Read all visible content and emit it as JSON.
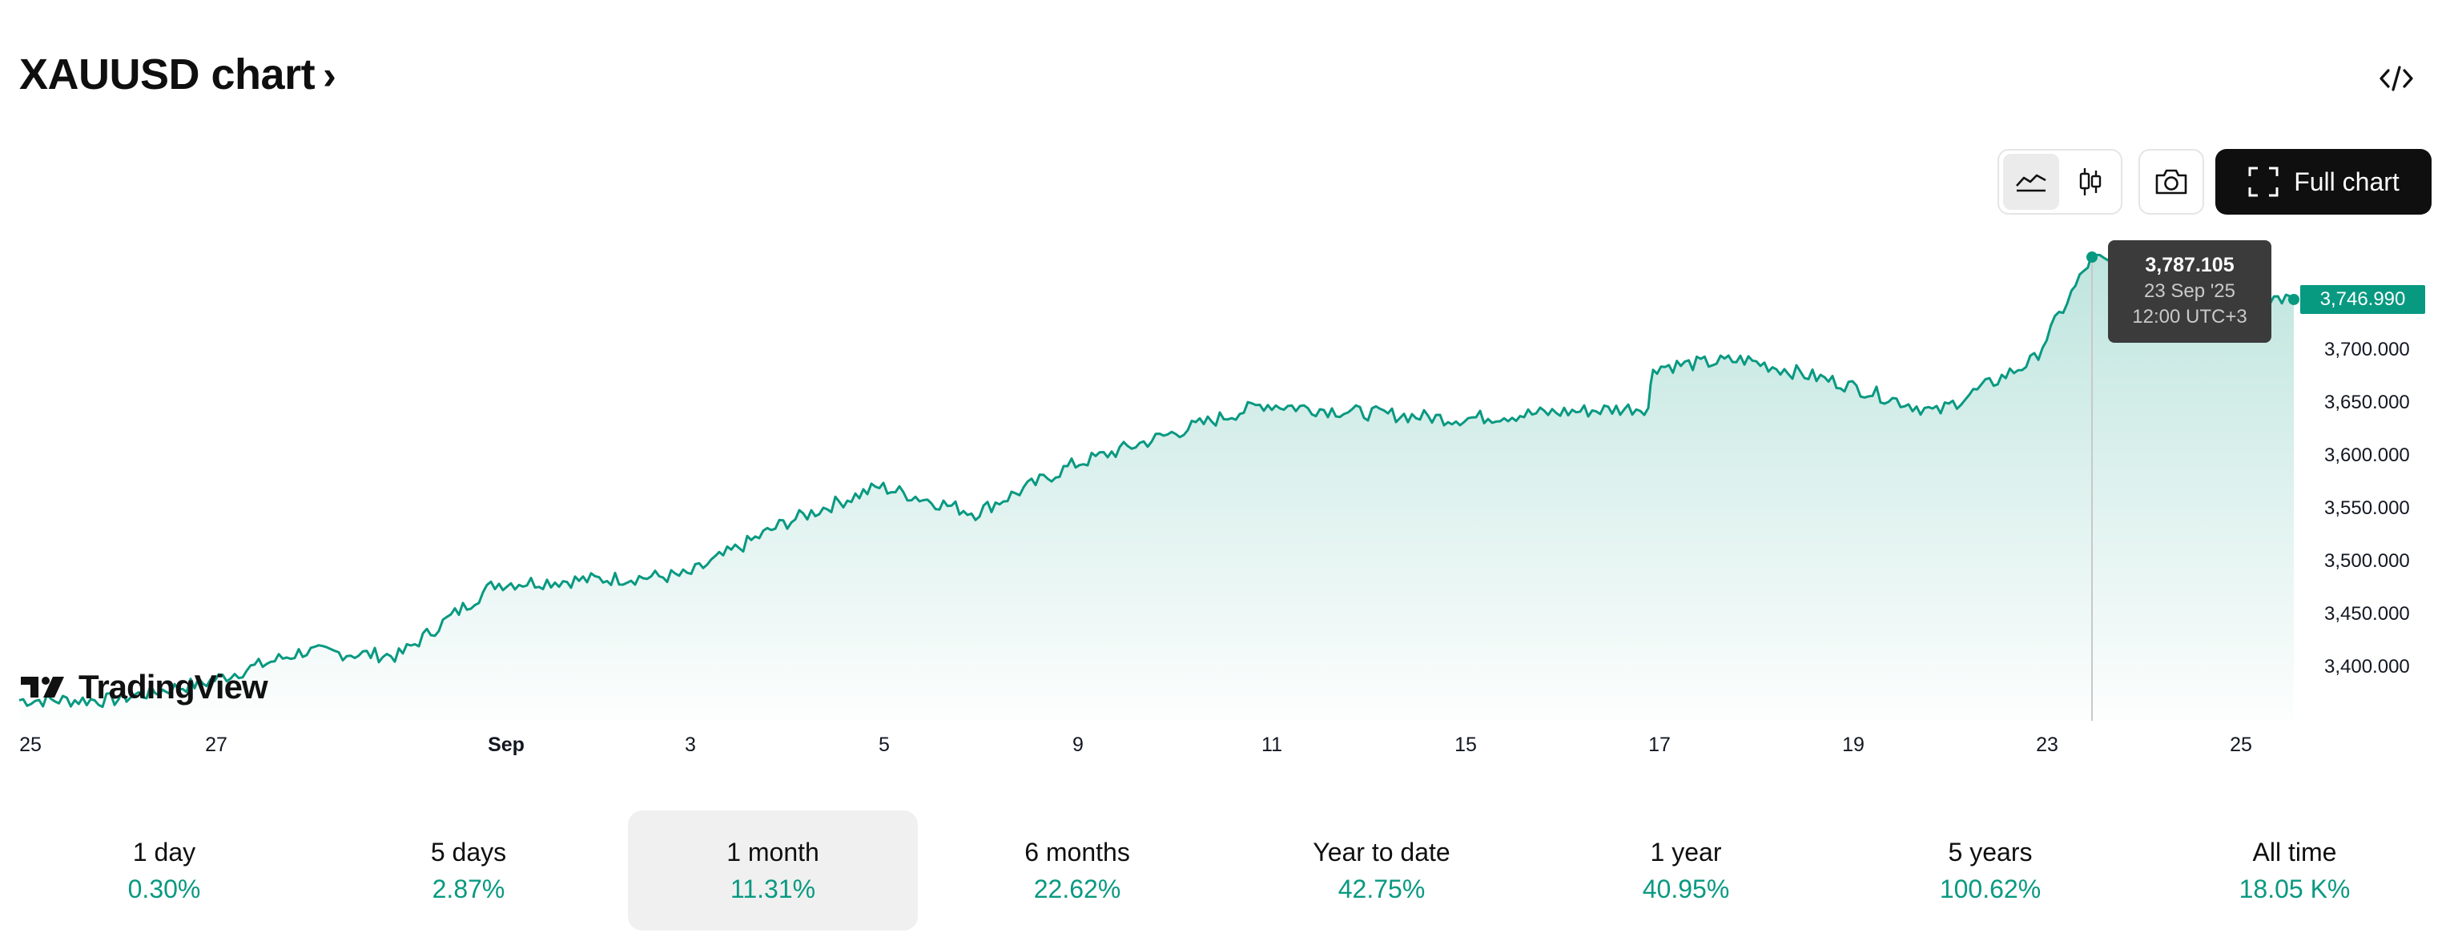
{
  "header": {
    "title": "XAUUSD chart",
    "chevron": "›",
    "embed_icon": "code-icon"
  },
  "toolbar": {
    "chart_types": [
      {
        "name": "area-chart-icon",
        "active": true
      },
      {
        "name": "candlestick-icon",
        "active": false
      }
    ],
    "snapshot_icon": "camera-icon",
    "full_chart_label": "Full chart",
    "full_chart_icon": "fullscreen-icon"
  },
  "tooltip": {
    "value": "3,787.105",
    "date": "23 Sep '25",
    "time": "12:00 UTC+3"
  },
  "current_price": "3,746.990",
  "branding": {
    "logo_text": "TradingView"
  },
  "colors": {
    "line": "#089981",
    "accent": "#089981",
    "button_dark": "#0f0f0f"
  },
  "chart_data": {
    "type": "area",
    "title": "",
    "xlabel": "",
    "ylabel": "",
    "series": [
      {
        "x": [
          "Aug 25",
          "Aug 26",
          "Aug 27",
          "Aug 28",
          "Aug 29",
          "Sep 1",
          "Sep 2",
          "Sep 3",
          "Sep 4",
          "Sep 5",
          "Sep 8",
          "Sep 9",
          "Sep 10",
          "Sep 11",
          "Sep 12",
          "Sep 15",
          "Sep 16",
          "Sep 17",
          "Sep 18",
          "Sep 19",
          "Sep 22",
          "Sep 23",
          "Sep 24",
          "Sep 25"
        ],
        "values": [
          3368,
          3368,
          3385,
          3414,
          3410,
          3478,
          3486,
          3535,
          3570,
          3545,
          3590,
          3648,
          3640,
          3634,
          3640,
          3645,
          3683,
          3690,
          3668,
          3640,
          3690,
          3787,
          3752,
          3747
        ]
      }
    ],
    "y_ticks": [
      "3,400.000",
      "3,450.000",
      "3,500.000",
      "3,550.000",
      "3,600.000",
      "3,650.000",
      "3,700.000"
    ],
    "x_ticks": [
      {
        "label": "25",
        "bold": false
      },
      {
        "label": "27",
        "bold": false
      },
      {
        "label": "Sep",
        "bold": true
      },
      {
        "label": "3",
        "bold": false
      },
      {
        "label": "5",
        "bold": false
      },
      {
        "label": "9",
        "bold": false
      },
      {
        "label": "11",
        "bold": false
      },
      {
        "label": "15",
        "bold": false
      },
      {
        "label": "17",
        "bold": false
      },
      {
        "label": "19",
        "bold": false
      },
      {
        "label": "23",
        "bold": false
      },
      {
        "label": "25",
        "bold": false
      }
    ],
    "ylim": [
      3350,
      3800
    ],
    "grid": false,
    "legend": "none",
    "last_value": 3746.99,
    "highlight": {
      "x": "Sep 23",
      "value": 3787.105
    }
  },
  "periods": [
    {
      "label": "1 day",
      "value": "0.30%",
      "active": false
    },
    {
      "label": "5 days",
      "value": "2.87%",
      "active": false
    },
    {
      "label": "1 month",
      "value": "11.31%",
      "active": true
    },
    {
      "label": "6 months",
      "value": "22.62%",
      "active": false
    },
    {
      "label": "Year to date",
      "value": "42.75%",
      "active": false
    },
    {
      "label": "1 year",
      "value": "40.95%",
      "active": false
    },
    {
      "label": "5 years",
      "value": "100.62%",
      "active": false
    },
    {
      "label": "All time",
      "value": "18.05 K%",
      "active": false
    }
  ]
}
